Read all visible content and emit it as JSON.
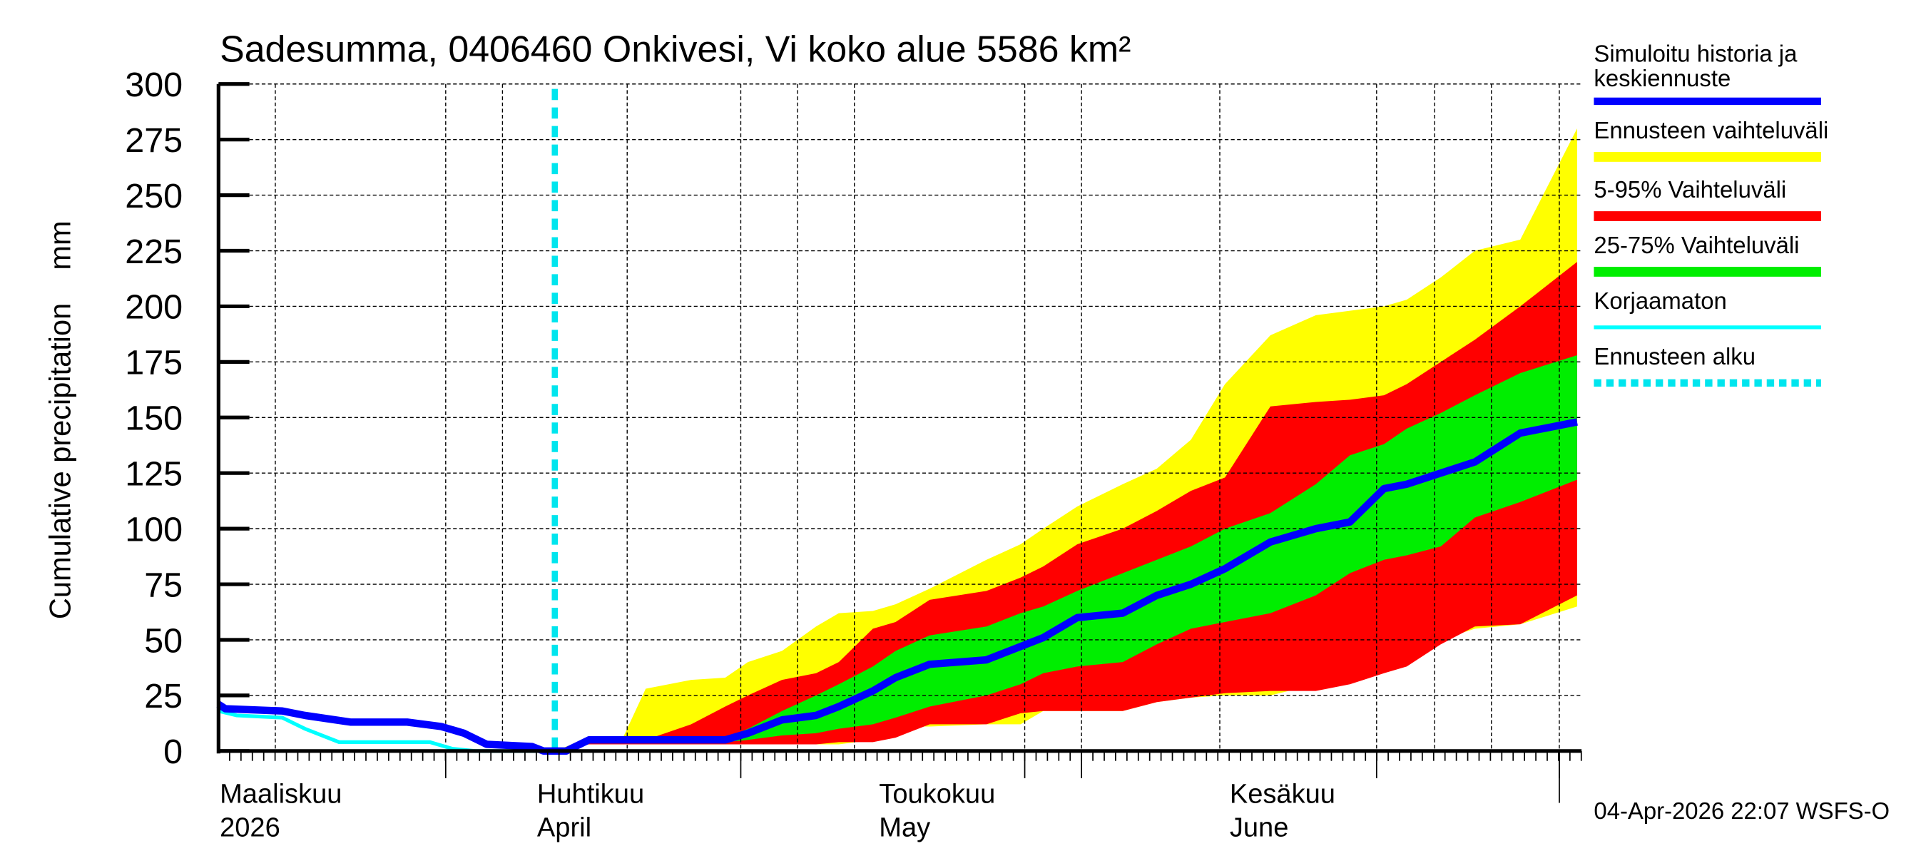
{
  "chart_data": {
    "type": "area",
    "title": "Sadesumma, 0406460 Onkivesi, Vi koko alue 5586 km²",
    "ylabel": "Cumulative precipitation    mm",
    "xlabel": "",
    "ylim": [
      0,
      300
    ],
    "yticks": [
      0,
      25,
      50,
      75,
      100,
      125,
      150,
      175,
      200,
      225,
      250,
      275,
      300
    ],
    "xlim": [
      "2026-03-04",
      "2026-07-02"
    ],
    "month_labels": [
      {
        "fi": "Maaliskuu",
        "en": "2026",
        "date": "2026-03-01"
      },
      {
        "fi": "Huhtikuu",
        "en": "April",
        "date": "2026-04-01"
      },
      {
        "fi": "Toukokuu",
        "en": "May",
        "date": "2026-05-01"
      },
      {
        "fi": "Kesäkuu",
        "en": "June",
        "date": "2026-06-01"
      }
    ],
    "grid": true,
    "legend_position": "right",
    "forecast_start": "2026-04-03",
    "timestamp": "04-Apr-2026 22:07 WSFS-O",
    "legend": [
      {
        "label": "Simuloitu historia ja keskiennuste",
        "line1": "Simuloitu historia ja",
        "line2": "keskiennuste",
        "color": "#0000ff",
        "style": "thick"
      },
      {
        "label": "Ennusteen vaihteluväli",
        "color": "#ffff00",
        "style": "band"
      },
      {
        "label": "5-95% Vaihteluväli",
        "color": "#ff0000",
        "style": "band"
      },
      {
        "label": "25-75% Vaihteluväli",
        "color": "#00ee00",
        "style": "band"
      },
      {
        "label": "Korjaamaton",
        "color": "#00ffff",
        "style": "thin"
      },
      {
        "label": "Ennusteen alku",
        "color": "#00e5ee",
        "style": "dotted"
      }
    ],
    "band_dates": [
      "2026-04-03",
      "2026-04-06",
      "2026-04-09",
      "2026-04-11",
      "2026-04-15",
      "2026-04-18",
      "2026-04-20",
      "2026-04-23",
      "2026-04-26",
      "2026-04-28",
      "2026-05-01",
      "2026-05-03",
      "2026-05-06",
      "2026-05-11",
      "2026-05-14",
      "2026-05-16",
      "2026-05-19",
      "2026-05-23",
      "2026-05-26",
      "2026-05-29",
      "2026-06-01",
      "2026-06-05",
      "2026-06-09",
      "2026-06-12",
      "2026-06-15",
      "2026-06-17",
      "2026-06-20",
      "2026-06-23",
      "2026-06-27",
      "2026-07-02"
    ],
    "bands": {
      "range_upper": [
        0,
        6,
        6,
        28,
        32,
        33,
        40,
        45,
        56,
        62,
        63,
        66,
        73,
        86,
        93,
        100,
        110,
        120,
        127,
        140,
        165,
        187,
        196,
        198,
        200,
        203,
        213,
        225,
        230,
        280
      ],
      "range_lower": [
        0,
        3,
        3,
        3,
        3,
        3,
        3,
        3,
        3,
        3,
        5,
        11,
        11,
        12,
        12,
        18,
        18,
        18,
        22,
        24,
        25,
        25,
        30,
        32,
        36,
        40,
        50,
        55,
        57,
        65
      ],
      "p5_95_upper": [
        0,
        5,
        5,
        5,
        12,
        20,
        25,
        32,
        35,
        40,
        55,
        58,
        68,
        72,
        78,
        83,
        93,
        100,
        108,
        117,
        123,
        155,
        157,
        158,
        160,
        165,
        175,
        185,
        200,
        220
      ],
      "p5_95_lower": [
        0,
        3,
        3,
        3,
        3,
        3,
        3,
        3,
        3,
        4,
        4,
        6,
        12,
        12,
        17,
        18,
        18,
        18,
        22,
        24,
        26,
        27,
        27,
        30,
        35,
        38,
        48,
        56,
        57,
        70
      ],
      "p25_75_upper": [
        0,
        5,
        5,
        5,
        6,
        6,
        10,
        18,
        25,
        30,
        38,
        45,
        52,
        56,
        62,
        65,
        72,
        80,
        86,
        92,
        100,
        107,
        120,
        133,
        138,
        145,
        152,
        160,
        170,
        178
      ],
      "p25_75_lower": [
        0,
        4,
        4,
        4,
        4,
        4,
        5,
        7,
        8,
        10,
        12,
        15,
        20,
        25,
        30,
        35,
        38,
        40,
        48,
        55,
        58,
        62,
        70,
        80,
        86,
        88,
        92,
        105,
        112,
        122
      ]
    },
    "series": [
      {
        "name": "Simuloitu historia ja keskiennuste",
        "color": "#0000ff",
        "x": [
          "2026-03-04",
          "2026-03-05",
          "2026-03-10",
          "2026-03-12",
          "2026-03-16",
          "2026-03-21",
          "2026-03-24",
          "2026-03-26",
          "2026-03-28",
          "2026-04-01",
          "2026-04-02",
          "2026-04-04",
          "2026-04-06",
          "2026-04-18",
          "2026-04-20",
          "2026-04-23",
          "2026-04-26",
          "2026-04-28",
          "2026-05-01",
          "2026-05-03",
          "2026-05-06",
          "2026-05-11",
          "2026-05-13",
          "2026-05-16",
          "2026-05-19",
          "2026-05-23",
          "2026-05-26",
          "2026-05-29",
          "2026-06-01",
          "2026-06-05",
          "2026-06-09",
          "2026-06-12",
          "2026-06-15",
          "2026-06-17",
          "2026-06-20",
          "2026-06-23",
          "2026-06-27",
          "2026-07-02"
        ],
        "y": [
          21,
          19,
          18,
          16,
          13,
          13,
          11,
          8,
          3,
          2,
          0,
          0,
          5,
          5,
          8,
          14,
          16,
          20,
          27,
          33,
          39,
          41,
          45,
          51,
          60,
          62,
          70,
          75,
          82,
          94,
          100,
          103,
          118,
          120,
          125,
          130,
          143,
          148
        ]
      },
      {
        "name": "Korjaamaton",
        "color": "#00ffff",
        "x": [
          "2026-03-04",
          "2026-03-06",
          "2026-03-10",
          "2026-03-12",
          "2026-03-15",
          "2026-03-23",
          "2026-03-25",
          "2026-03-27",
          "2026-04-02"
        ],
        "y": [
          18,
          16,
          15,
          10,
          4,
          4,
          1,
          0,
          0
        ]
      }
    ]
  }
}
